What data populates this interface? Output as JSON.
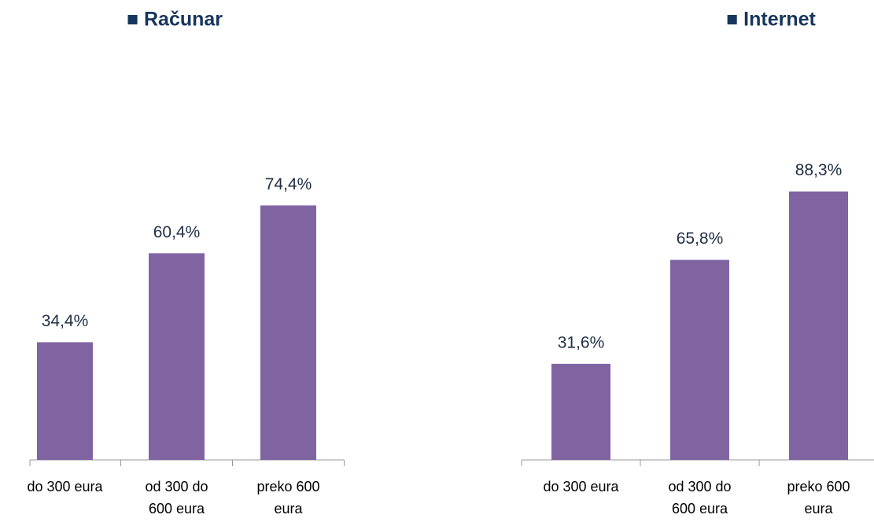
{
  "chart_data": [
    {
      "type": "bar",
      "title": "■ Računar",
      "categories": [
        "do 300 eura",
        "od 300 do\n600 eura",
        "preko 600\neura"
      ],
      "values": [
        34.4,
        60.4,
        74.4
      ],
      "value_labels": [
        "34,4%",
        "60,4%",
        "74,4%"
      ],
      "color": "#8064a2",
      "ylim": [
        0,
        80
      ]
    },
    {
      "type": "bar",
      "title": "■ Internet",
      "categories": [
        "do 300 eura",
        "od 300 do\n600 eura",
        "preko 600\neura"
      ],
      "values": [
        31.6,
        65.8,
        88.3
      ],
      "value_labels": [
        "31,6%",
        "65,8%",
        "88,3%"
      ],
      "color": "#8064a2",
      "ylim": [
        0,
        90
      ]
    }
  ]
}
